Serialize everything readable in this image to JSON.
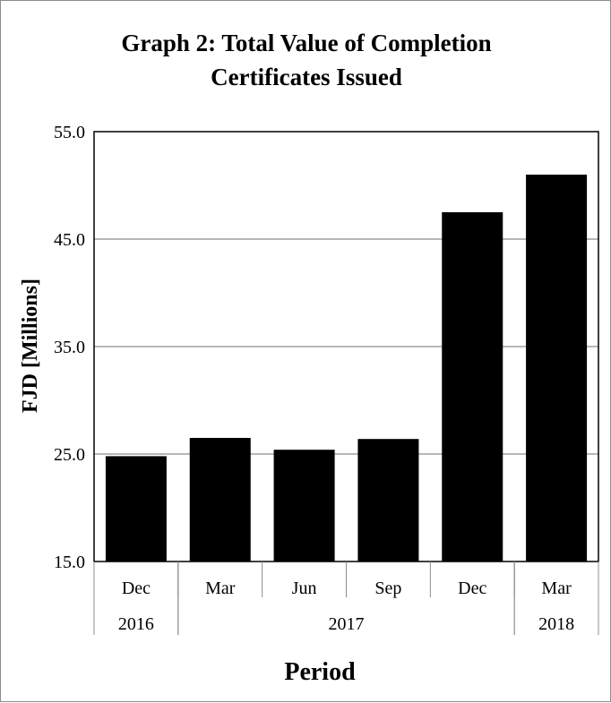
{
  "chart_data": {
    "type": "bar",
    "title": [
      "Graph 2: Total Value of Completion",
      "Certificates Issued"
    ],
    "xlabel": "Period",
    "ylabel": "FJD [Millions]",
    "ylim": [
      15.0,
      55.0
    ],
    "yticks": [
      "15.0",
      "25.0",
      "35.0",
      "45.0",
      "55.0"
    ],
    "ytick_values": [
      15,
      25,
      35,
      45,
      55
    ],
    "categories": [
      "Dec",
      "Mar",
      "Jun",
      "Sep",
      "Dec",
      "Mar"
    ],
    "year_groups": [
      {
        "label": "2016",
        "span": [
          0,
          0
        ]
      },
      {
        "label": "2017",
        "span": [
          1,
          4
        ]
      },
      {
        "label": "2018",
        "span": [
          5,
          5
        ]
      }
    ],
    "values": [
      24.8,
      26.5,
      25.4,
      26.4,
      47.5,
      51.0
    ],
    "bar_color": "#000000",
    "grid": true,
    "legend": "none"
  }
}
